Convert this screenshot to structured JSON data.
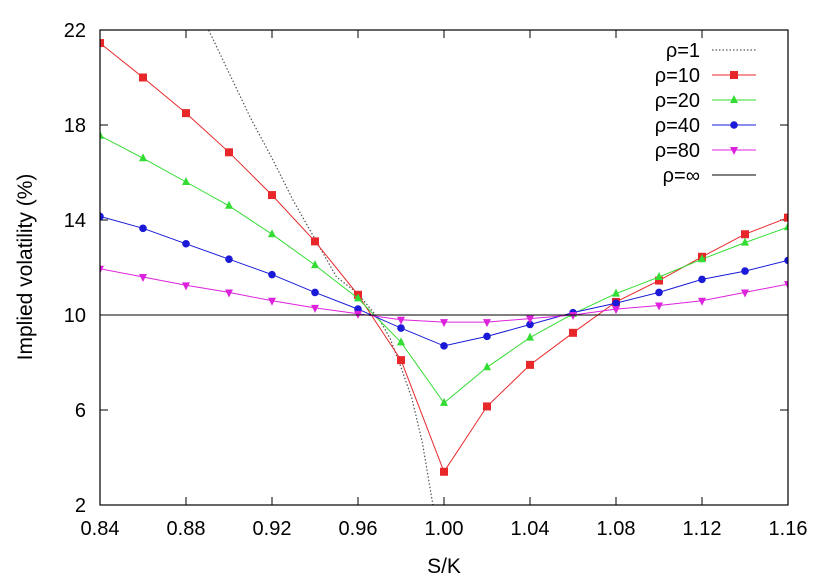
{
  "chart_data": {
    "type": "line",
    "title": "",
    "xlabel": "S/K",
    "ylabel": "Implied volatility (%)",
    "xlim": [
      0.84,
      1.16
    ],
    "ylim": [
      2,
      22
    ],
    "xticks": [
      0.84,
      0.88,
      0.92,
      0.96,
      1.0,
      1.04,
      1.08,
      1.12,
      1.16
    ],
    "xtick_labels": [
      "0.84",
      "0.88",
      "0.92",
      "0.96",
      "1.00",
      "1.04",
      "1.08",
      "1.12",
      "1.16"
    ],
    "yticks": [
      2,
      6,
      10,
      14,
      18,
      22
    ],
    "ytick_labels": [
      "2",
      "6",
      "10",
      "14",
      "18",
      "22"
    ],
    "grid": false,
    "legend_position": "top-right",
    "series": [
      {
        "name": "ρ=1",
        "color": "#555555",
        "style": "dotted",
        "marker": "none",
        "x": [
          0.88,
          0.89,
          0.9,
          0.91,
          0.92,
          0.93,
          0.94,
          0.95,
          0.96,
          0.97,
          0.975,
          0.98,
          0.985,
          0.99,
          0.995
        ],
        "y": [
          25.7,
          22.1,
          20.2,
          18.3,
          16.6,
          14.8,
          13.2,
          11.6,
          10.9,
          9.8,
          9.0,
          7.8,
          6.5,
          4.6,
          1.9
        ]
      },
      {
        "name": "ρ=10",
        "color": "#e8272a",
        "style": "solid",
        "marker": "square",
        "x": [
          0.84,
          0.86,
          0.88,
          0.9,
          0.92,
          0.94,
          0.96,
          0.98,
          1.0,
          1.02,
          1.04,
          1.06,
          1.08,
          1.1,
          1.12,
          1.14,
          1.16
        ],
        "y": [
          21.45,
          20.0,
          18.5,
          16.85,
          15.05,
          13.1,
          10.85,
          8.1,
          3.4,
          6.15,
          7.9,
          9.25,
          10.55,
          11.45,
          12.45,
          13.4,
          14.1
        ]
      },
      {
        "name": "ρ=20",
        "color": "#33dd33",
        "style": "solid",
        "marker": "triangle",
        "x": [
          0.84,
          0.86,
          0.88,
          0.9,
          0.92,
          0.94,
          0.96,
          0.98,
          1.0,
          1.02,
          1.04,
          1.06,
          1.08,
          1.1,
          1.12,
          1.14,
          1.16
        ],
        "y": [
          17.55,
          16.6,
          15.6,
          14.6,
          13.4,
          12.1,
          10.7,
          8.85,
          6.3,
          7.8,
          9.05,
          10.05,
          10.9,
          11.6,
          12.35,
          13.05,
          13.7
        ]
      },
      {
        "name": "ρ=40",
        "color": "#1a1ad8",
        "style": "solid",
        "marker": "circle",
        "x": [
          0.84,
          0.86,
          0.88,
          0.9,
          0.92,
          0.94,
          0.96,
          0.98,
          1.0,
          1.02,
          1.04,
          1.06,
          1.08,
          1.1,
          1.12,
          1.14,
          1.16
        ],
        "y": [
          14.15,
          13.65,
          13.0,
          12.35,
          11.7,
          10.95,
          10.25,
          9.45,
          8.7,
          9.1,
          9.6,
          10.1,
          10.5,
          10.95,
          11.5,
          11.85,
          12.3
        ]
      },
      {
        "name": "ρ=80",
        "color": "#dd22dd",
        "style": "solid",
        "marker": "triangle-down",
        "x": [
          0.84,
          0.86,
          0.88,
          0.9,
          0.92,
          0.94,
          0.96,
          0.98,
          1.0,
          1.02,
          1.04,
          1.06,
          1.08,
          1.1,
          1.12,
          1.14,
          1.16
        ],
        "y": [
          11.95,
          11.6,
          11.25,
          10.95,
          10.6,
          10.3,
          10.05,
          9.8,
          9.7,
          9.7,
          9.85,
          10.0,
          10.25,
          10.4,
          10.6,
          10.95,
          11.3
        ]
      },
      {
        "name": "ρ=∞",
        "color": "#000000",
        "style": "solid",
        "marker": "none",
        "x": [
          0.84,
          1.16
        ],
        "y": [
          10.0,
          10.0
        ]
      }
    ]
  }
}
